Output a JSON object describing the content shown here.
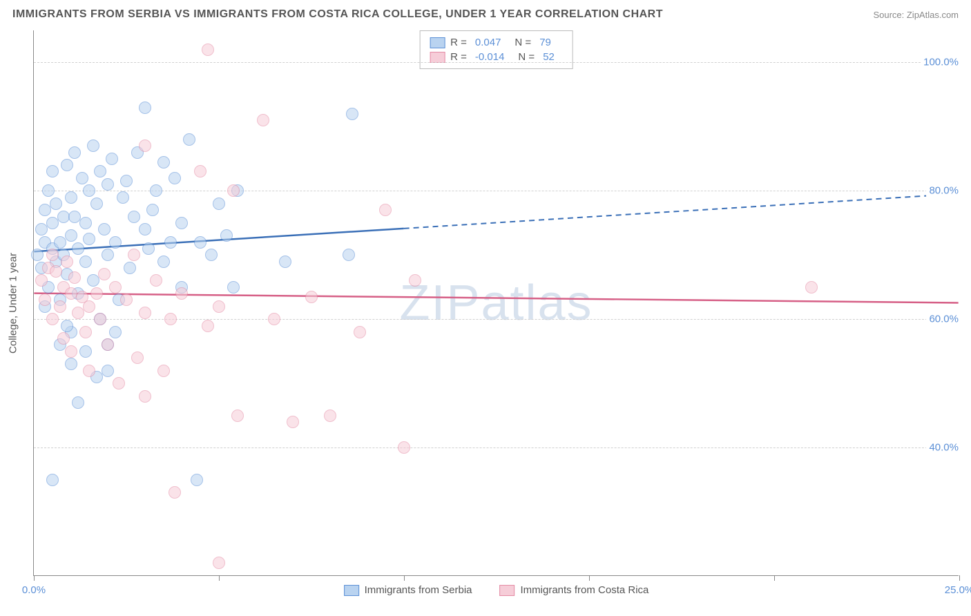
{
  "title": "IMMIGRANTS FROM SERBIA VS IMMIGRANTS FROM COSTA RICA COLLEGE, UNDER 1 YEAR CORRELATION CHART",
  "source": "Source: ZipAtlas.com",
  "watermark": "ZIPatlas",
  "ylabel": "College, Under 1 year",
  "chart": {
    "type": "scatter",
    "xlim": [
      0,
      25
    ],
    "ylim": [
      20,
      105
    ],
    "x_ticks": [
      0,
      5,
      10,
      15,
      20,
      25
    ],
    "x_tick_labels": [
      "0.0%",
      "",
      "",
      "",
      "",
      "25.0%"
    ],
    "y_gridlines": [
      40,
      60,
      80,
      100
    ],
    "y_tick_labels": [
      "40.0%",
      "60.0%",
      "80.0%",
      "100.0%"
    ],
    "grid_color": "#d0d0d0",
    "axis_color": "#888888",
    "tick_label_color": "#5b8fd6",
    "title_color": "#555555",
    "background_color": "#ffffff",
    "point_radius": 9,
    "point_opacity": 0.55,
    "series": [
      {
        "name": "Immigrants from Serbia",
        "fill": "#b9d3f0",
        "stroke": "#5b8fd6",
        "line_color": "#3a6fb7",
        "R": "0.047",
        "N": "79",
        "trend": {
          "x1": 0,
          "y1": 70.5,
          "x2": 25,
          "y2": 79.5,
          "solid_until_x": 10
        },
        "points": [
          [
            0.1,
            70
          ],
          [
            0.2,
            74
          ],
          [
            0.2,
            68
          ],
          [
            0.3,
            72
          ],
          [
            0.3,
            77
          ],
          [
            0.4,
            65
          ],
          [
            0.4,
            80
          ],
          [
            0.5,
            71
          ],
          [
            0.5,
            75
          ],
          [
            0.5,
            83
          ],
          [
            0.6,
            69
          ],
          [
            0.6,
            78
          ],
          [
            0.7,
            72
          ],
          [
            0.7,
            63
          ],
          [
            0.8,
            76
          ],
          [
            0.8,
            70
          ],
          [
            0.9,
            84
          ],
          [
            0.9,
            67
          ],
          [
            1.0,
            73
          ],
          [
            1.0,
            79
          ],
          [
            1.0,
            58
          ],
          [
            1.1,
            86
          ],
          [
            1.2,
            71
          ],
          [
            1.2,
            64
          ],
          [
            1.3,
            82
          ],
          [
            1.4,
            75
          ],
          [
            1.4,
            69
          ],
          [
            1.5,
            80
          ],
          [
            1.5,
            72.5
          ],
          [
            1.6,
            87
          ],
          [
            1.6,
            66
          ],
          [
            1.7,
            78
          ],
          [
            1.8,
            83
          ],
          [
            1.8,
            60
          ],
          [
            1.9,
            74
          ],
          [
            2.0,
            81
          ],
          [
            2.0,
            70
          ],
          [
            2.1,
            85
          ],
          [
            2.2,
            72
          ],
          [
            2.3,
            63
          ],
          [
            2.4,
            79
          ],
          [
            2.5,
            81.5
          ],
          [
            2.6,
            68
          ],
          [
            2.8,
            86
          ],
          [
            3.0,
            74
          ],
          [
            3.0,
            93
          ],
          [
            3.1,
            71
          ],
          [
            3.3,
            80
          ],
          [
            3.5,
            69
          ],
          [
            3.5,
            84.5
          ],
          [
            3.7,
            72
          ],
          [
            3.8,
            82
          ],
          [
            4.0,
            75
          ],
          [
            4.0,
            65
          ],
          [
            4.2,
            88
          ],
          [
            4.4,
            35
          ],
          [
            4.5,
            72
          ],
          [
            4.8,
            70
          ],
          [
            5.0,
            78
          ],
          [
            0.5,
            35
          ],
          [
            1.2,
            47
          ],
          [
            1.0,
            53
          ],
          [
            1.4,
            55
          ],
          [
            1.7,
            51
          ],
          [
            2.0,
            52
          ],
          [
            2.0,
            56
          ],
          [
            2.2,
            58
          ],
          [
            0.7,
            56
          ],
          [
            0.9,
            59
          ],
          [
            6.8,
            69
          ],
          [
            5.2,
            73
          ],
          [
            5.5,
            80
          ],
          [
            5.4,
            65
          ],
          [
            8.6,
            92
          ],
          [
            8.5,
            70
          ],
          [
            3.2,
            77
          ],
          [
            2.7,
            76
          ],
          [
            1.1,
            76
          ],
          [
            0.3,
            62
          ]
        ]
      },
      {
        "name": "Immigrants from Costa Rica",
        "fill": "#f6cdd8",
        "stroke": "#e48aa4",
        "line_color": "#d65f86",
        "R": "-0.014",
        "N": "52",
        "trend": {
          "x1": 0,
          "y1": 64,
          "x2": 25,
          "y2": 62.5,
          "solid_until_x": 25
        },
        "points": [
          [
            0.2,
            66
          ],
          [
            0.3,
            63
          ],
          [
            0.4,
            68
          ],
          [
            0.5,
            60
          ],
          [
            0.5,
            70
          ],
          [
            0.6,
            67.5
          ],
          [
            0.7,
            62
          ],
          [
            0.8,
            65
          ],
          [
            0.8,
            57
          ],
          [
            0.9,
            69
          ],
          [
            1.0,
            64
          ],
          [
            1.0,
            55
          ],
          [
            1.1,
            66.5
          ],
          [
            1.2,
            61
          ],
          [
            1.3,
            63.5
          ],
          [
            1.4,
            58
          ],
          [
            1.5,
            62
          ],
          [
            1.5,
            52
          ],
          [
            1.7,
            64
          ],
          [
            1.8,
            60
          ],
          [
            1.9,
            67
          ],
          [
            2.0,
            56
          ],
          [
            2.2,
            65
          ],
          [
            2.3,
            50
          ],
          [
            2.5,
            63
          ],
          [
            2.7,
            70
          ],
          [
            2.8,
            54
          ],
          [
            3.0,
            61
          ],
          [
            3.0,
            87
          ],
          [
            3.3,
            66
          ],
          [
            3.5,
            52
          ],
          [
            3.7,
            60
          ],
          [
            3.8,
            33
          ],
          [
            4.0,
            64
          ],
          [
            4.5,
            83
          ],
          [
            4.7,
            59
          ],
          [
            5.0,
            62
          ],
          [
            4.7,
            102
          ],
          [
            5.4,
            80
          ],
          [
            5.5,
            45
          ],
          [
            6.2,
            91
          ],
          [
            6.5,
            60
          ],
          [
            7.0,
            44
          ],
          [
            7.5,
            63.5
          ],
          [
            8.0,
            45
          ],
          [
            8.8,
            58
          ],
          [
            9.5,
            77
          ],
          [
            10.0,
            40
          ],
          [
            10.3,
            66
          ],
          [
            5.0,
            22
          ],
          [
            21.0,
            65
          ],
          [
            3.0,
            48
          ]
        ]
      }
    ]
  },
  "legend_labels": {
    "R": "R =",
    "N": "N ="
  }
}
